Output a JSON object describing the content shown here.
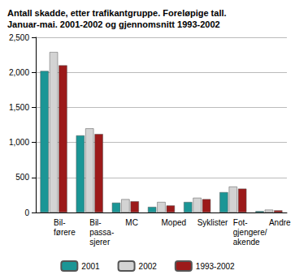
{
  "chart_data": {
    "type": "bar",
    "title": "Antall skadde, etter trafikantgruppe. Foreløpige tall.\nJanuar-mai. 2001-2002 og gjennomsnitt 1993-2002",
    "categories": [
      "Bil-\nførere",
      "Bil-\npassa-\nsjerer",
      "MC",
      "Moped",
      "Syklister",
      "Fot-\ngjengere/\nakende",
      "Andre"
    ],
    "series": [
      {
        "name": "2001",
        "color": "#1b9696",
        "values": [
          2020,
          1100,
          140,
          80,
          150,
          290,
          20
        ]
      },
      {
        "name": "2002",
        "color": "#d3d3d3",
        "values": [
          2290,
          1200,
          190,
          150,
          210,
          370,
          40
        ]
      },
      {
        "name": "1993-2002",
        "color": "#9c1a1a",
        "values": [
          2100,
          1120,
          160,
          100,
          190,
          340,
          30
        ]
      }
    ],
    "ylim": [
      0,
      2500
    ],
    "yticks": [
      0,
      500,
      1000,
      1500,
      2000,
      2500
    ],
    "grid": true,
    "legend": "bottom"
  }
}
